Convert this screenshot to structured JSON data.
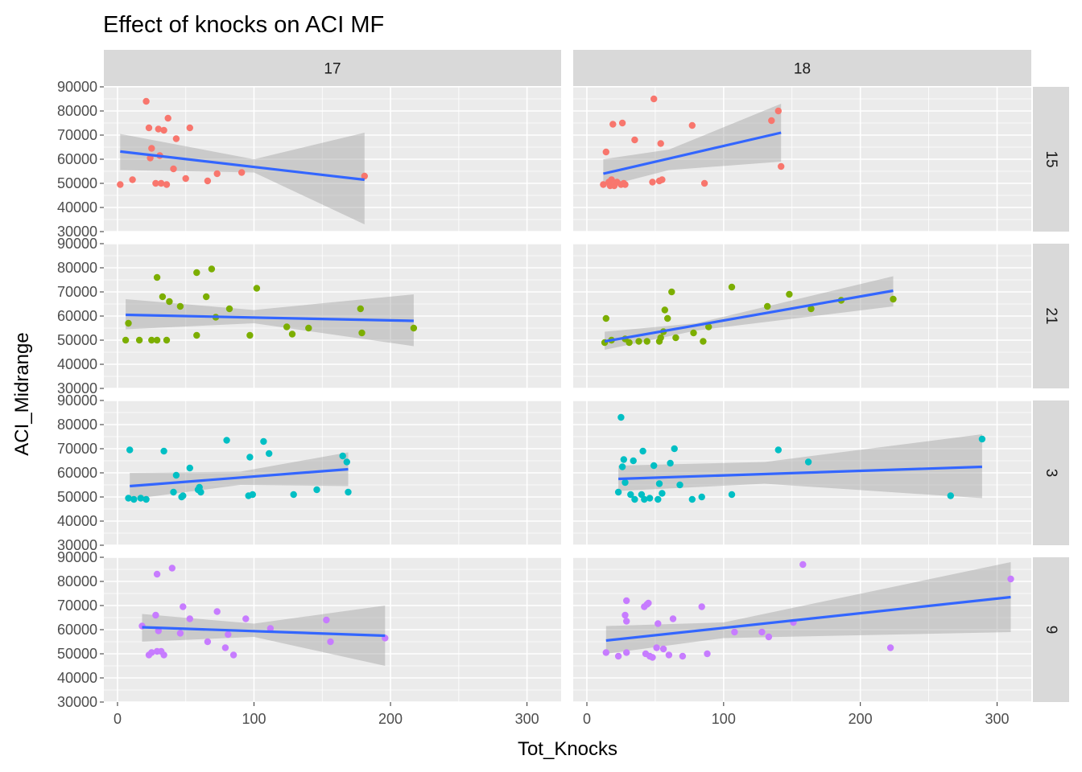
{
  "chart_data": {
    "type": "scatter",
    "title": "Effect of knocks on ACI MF",
    "xlabel": "Tot_Knocks",
    "ylabel": "ACI_Midrange",
    "facet_columns": [
      "17",
      "18"
    ],
    "facet_rows": [
      "15",
      "21",
      "3",
      "9"
    ],
    "xlim": [
      -10,
      325
    ],
    "ylim": [
      30000,
      90000
    ],
    "x_ticks": [
      0,
      100,
      200,
      300
    ],
    "y_ticks": [
      30000,
      40000,
      50000,
      60000,
      70000,
      80000,
      90000
    ],
    "grid": true,
    "smooth": "linear fit with confidence band",
    "colors": {
      "15": "#F8766D",
      "21": "#7CAE00",
      "3": "#00BFC4",
      "9": "#C77CFF",
      "line": "#3366FF",
      "band": "#999999",
      "panel_bg": "#EBEBEB",
      "strip_bg": "#D9D9D9"
    },
    "panels": [
      {
        "row": "15",
        "col": "17",
        "points": [
          [
            2,
            49500
          ],
          [
            11,
            51500
          ],
          [
            21,
            84000
          ],
          [
            23,
            73000
          ],
          [
            24,
            60500
          ],
          [
            25,
            64500
          ],
          [
            28,
            50000
          ],
          [
            30,
            72500
          ],
          [
            31,
            61500
          ],
          [
            32,
            50000
          ],
          [
            34,
            72000
          ],
          [
            36,
            49500
          ],
          [
            37,
            77000
          ],
          [
            41,
            56000
          ],
          [
            43,
            68500
          ],
          [
            50,
            52000
          ],
          [
            53,
            73000
          ],
          [
            66,
            51000
          ],
          [
            73,
            54000
          ],
          [
            91,
            54500
          ],
          [
            181,
            53000
          ]
        ],
        "fit": {
          "x": [
            2,
            181
          ],
          "y": [
            63200,
            51500
          ]
        },
        "band": {
          "x": [
            2,
            100,
            181
          ],
          "lo": [
            55500,
            54500,
            33000
          ],
          "hi": [
            70500,
            60000,
            71000
          ]
        }
      },
      {
        "row": "15",
        "col": "18",
        "points": [
          [
            12,
            49500
          ],
          [
            14,
            63000
          ],
          [
            16,
            50500
          ],
          [
            17,
            49000
          ],
          [
            18,
            51500
          ],
          [
            19,
            74500
          ],
          [
            20,
            49000
          ],
          [
            22,
            50500
          ],
          [
            25,
            49500
          ],
          [
            26,
            75000
          ],
          [
            27,
            50000
          ],
          [
            28,
            49500
          ],
          [
            35,
            68000
          ],
          [
            48,
            50500
          ],
          [
            49,
            85000
          ],
          [
            53,
            51000
          ],
          [
            54,
            66500
          ],
          [
            55,
            51500
          ],
          [
            77,
            74000
          ],
          [
            86,
            50000
          ],
          [
            135,
            76000
          ],
          [
            140,
            80000
          ],
          [
            142,
            57000
          ]
        ],
        "fit": {
          "x": [
            12,
            142
          ],
          "y": [
            54000,
            71000
          ]
        },
        "band": {
          "x": [
            12,
            60,
            142
          ],
          "lo": [
            48500,
            55500,
            59000
          ],
          "hi": [
            60000,
            64000,
            83000
          ]
        }
      },
      {
        "row": "21",
        "col": "17",
        "points": [
          [
            6,
            50000
          ],
          [
            8,
            57000
          ],
          [
            16,
            50000
          ],
          [
            25,
            50000
          ],
          [
            29,
            50000
          ],
          [
            29,
            76000
          ],
          [
            33,
            68000
          ],
          [
            36,
            50000
          ],
          [
            38,
            66000
          ],
          [
            46,
            64000
          ],
          [
            58,
            52000
          ],
          [
            58,
            78000
          ],
          [
            65,
            68000
          ],
          [
            69,
            79500
          ],
          [
            72,
            59500
          ],
          [
            82,
            63000
          ],
          [
            97,
            52000
          ],
          [
            102,
            71500
          ],
          [
            124,
            55500
          ],
          [
            128,
            52500
          ],
          [
            140,
            55000
          ],
          [
            178,
            63000
          ],
          [
            179,
            53000
          ],
          [
            217,
            55000
          ]
        ],
        "fit": {
          "x": [
            6,
            217
          ],
          "y": [
            60500,
            58000
          ]
        },
        "band": {
          "x": [
            6,
            100,
            217
          ],
          "lo": [
            54500,
            57000,
            47500
          ],
          "hi": [
            67000,
            62500,
            69000
          ]
        }
      },
      {
        "row": "21",
        "col": "18",
        "points": [
          [
            13,
            49000
          ],
          [
            14,
            59000
          ],
          [
            18,
            50000
          ],
          [
            28,
            50500
          ],
          [
            31,
            49000
          ],
          [
            38,
            49500
          ],
          [
            44,
            49500
          ],
          [
            53,
            49500
          ],
          [
            54,
            51000
          ],
          [
            56,
            53500
          ],
          [
            57,
            62500
          ],
          [
            59,
            59000
          ],
          [
            62,
            70000
          ],
          [
            65,
            51000
          ],
          [
            78,
            53000
          ],
          [
            85,
            49500
          ],
          [
            89,
            55500
          ],
          [
            106,
            72000
          ],
          [
            132,
            64000
          ],
          [
            148,
            69000
          ],
          [
            164,
            63000
          ],
          [
            186,
            66500
          ],
          [
            224,
            67000
          ]
        ],
        "fit": {
          "x": [
            13,
            224
          ],
          "y": [
            49500,
            70500
          ]
        },
        "band": {
          "x": [
            13,
            80,
            224
          ],
          "lo": [
            46000,
            54000,
            64000
          ],
          "hi": [
            53500,
            57000,
            76500
          ]
        }
      },
      {
        "row": "3",
        "col": "17",
        "points": [
          [
            8,
            49500
          ],
          [
            9,
            69500
          ],
          [
            12,
            49000
          ],
          [
            17,
            49500
          ],
          [
            21,
            49000
          ],
          [
            34,
            69000
          ],
          [
            41,
            52000
          ],
          [
            43,
            59000
          ],
          [
            47,
            50000
          ],
          [
            48,
            50500
          ],
          [
            53,
            62000
          ],
          [
            59,
            53000
          ],
          [
            60,
            54000
          ],
          [
            61,
            52000
          ],
          [
            80,
            73500
          ],
          [
            96,
            50500
          ],
          [
            97,
            66500
          ],
          [
            99,
            51000
          ],
          [
            107,
            73000
          ],
          [
            111,
            68000
          ],
          [
            129,
            51000
          ],
          [
            146,
            53000
          ],
          [
            165,
            67000
          ],
          [
            168,
            64500
          ],
          [
            169,
            52000
          ]
        ],
        "fit": {
          "x": [
            9,
            169
          ],
          "y": [
            54500,
            61500
          ]
        },
        "band": {
          "x": [
            9,
            90,
            169
          ],
          "lo": [
            49000,
            55000,
            54500
          ],
          "hi": [
            60000,
            60500,
            68500
          ]
        }
      },
      {
        "row": "3",
        "col": "18",
        "points": [
          [
            23,
            52000
          ],
          [
            25,
            83000
          ],
          [
            26,
            62500
          ],
          [
            27,
            65500
          ],
          [
            28,
            56000
          ],
          [
            32,
            51000
          ],
          [
            34,
            65000
          ],
          [
            35,
            49000
          ],
          [
            40,
            51000
          ],
          [
            41,
            69000
          ],
          [
            42,
            49000
          ],
          [
            46,
            49500
          ],
          [
            49,
            63000
          ],
          [
            52,
            49000
          ],
          [
            53,
            55500
          ],
          [
            55,
            51500
          ],
          [
            61,
            64000
          ],
          [
            64,
            70000
          ],
          [
            68,
            55000
          ],
          [
            77,
            49000
          ],
          [
            84,
            50000
          ],
          [
            106,
            51000
          ],
          [
            140,
            69500
          ],
          [
            162,
            64500
          ],
          [
            266,
            50500
          ],
          [
            289,
            74000
          ]
        ],
        "fit": {
          "x": [
            23,
            289
          ],
          "y": [
            57500,
            62500
          ]
        },
        "band": {
          "x": [
            23,
            130,
            289
          ],
          "lo": [
            52500,
            55500,
            49500
          ],
          "hi": [
            63000,
            64500,
            76000
          ]
        }
      },
      {
        "row": "9",
        "col": "17",
        "points": [
          [
            18,
            61500
          ],
          [
            23,
            49500
          ],
          [
            25,
            50500
          ],
          [
            28,
            66000
          ],
          [
            29,
            51000
          ],
          [
            29,
            83000
          ],
          [
            30,
            59500
          ],
          [
            32,
            51000
          ],
          [
            34,
            49500
          ],
          [
            40,
            85500
          ],
          [
            46,
            58500
          ],
          [
            48,
            69500
          ],
          [
            53,
            64500
          ],
          [
            66,
            55000
          ],
          [
            73,
            67500
          ],
          [
            79,
            52500
          ],
          [
            81,
            58000
          ],
          [
            85,
            49500
          ],
          [
            94,
            64500
          ],
          [
            112,
            60500
          ],
          [
            153,
            64000
          ],
          [
            156,
            55000
          ],
          [
            196,
            56500
          ]
        ],
        "fit": {
          "x": [
            18,
            196
          ],
          "y": [
            61000,
            57500
          ]
        },
        "band": {
          "x": [
            18,
            100,
            196
          ],
          "lo": [
            55000,
            57000,
            45000
          ],
          "hi": [
            66500,
            62500,
            70000
          ]
        }
      },
      {
        "row": "9",
        "col": "18",
        "points": [
          [
            14,
            50500
          ],
          [
            23,
            49000
          ],
          [
            28,
            66000
          ],
          [
            29,
            72000
          ],
          [
            29,
            63500
          ],
          [
            29,
            50500
          ],
          [
            42,
            69500
          ],
          [
            43,
            50000
          ],
          [
            44,
            70500
          ],
          [
            45,
            71000
          ],
          [
            46,
            49000
          ],
          [
            48,
            48500
          ],
          [
            51,
            52500
          ],
          [
            52,
            62500
          ],
          [
            56,
            52000
          ],
          [
            60,
            49500
          ],
          [
            63,
            64500
          ],
          [
            70,
            49000
          ],
          [
            84,
            69500
          ],
          [
            88,
            50000
          ],
          [
            108,
            59000
          ],
          [
            128,
            59000
          ],
          [
            133,
            57000
          ],
          [
            151,
            63000
          ],
          [
            158,
            87000
          ],
          [
            222,
            52500
          ],
          [
            310,
            81000
          ]
        ],
        "fit": {
          "x": [
            14,
            310
          ],
          "y": [
            55500,
            73500
          ]
        },
        "band": {
          "x": [
            14,
            100,
            310
          ],
          "lo": [
            50000,
            56500,
            59000
          ],
          "hi": [
            61500,
            63000,
            88000
          ]
        }
      }
    ]
  }
}
